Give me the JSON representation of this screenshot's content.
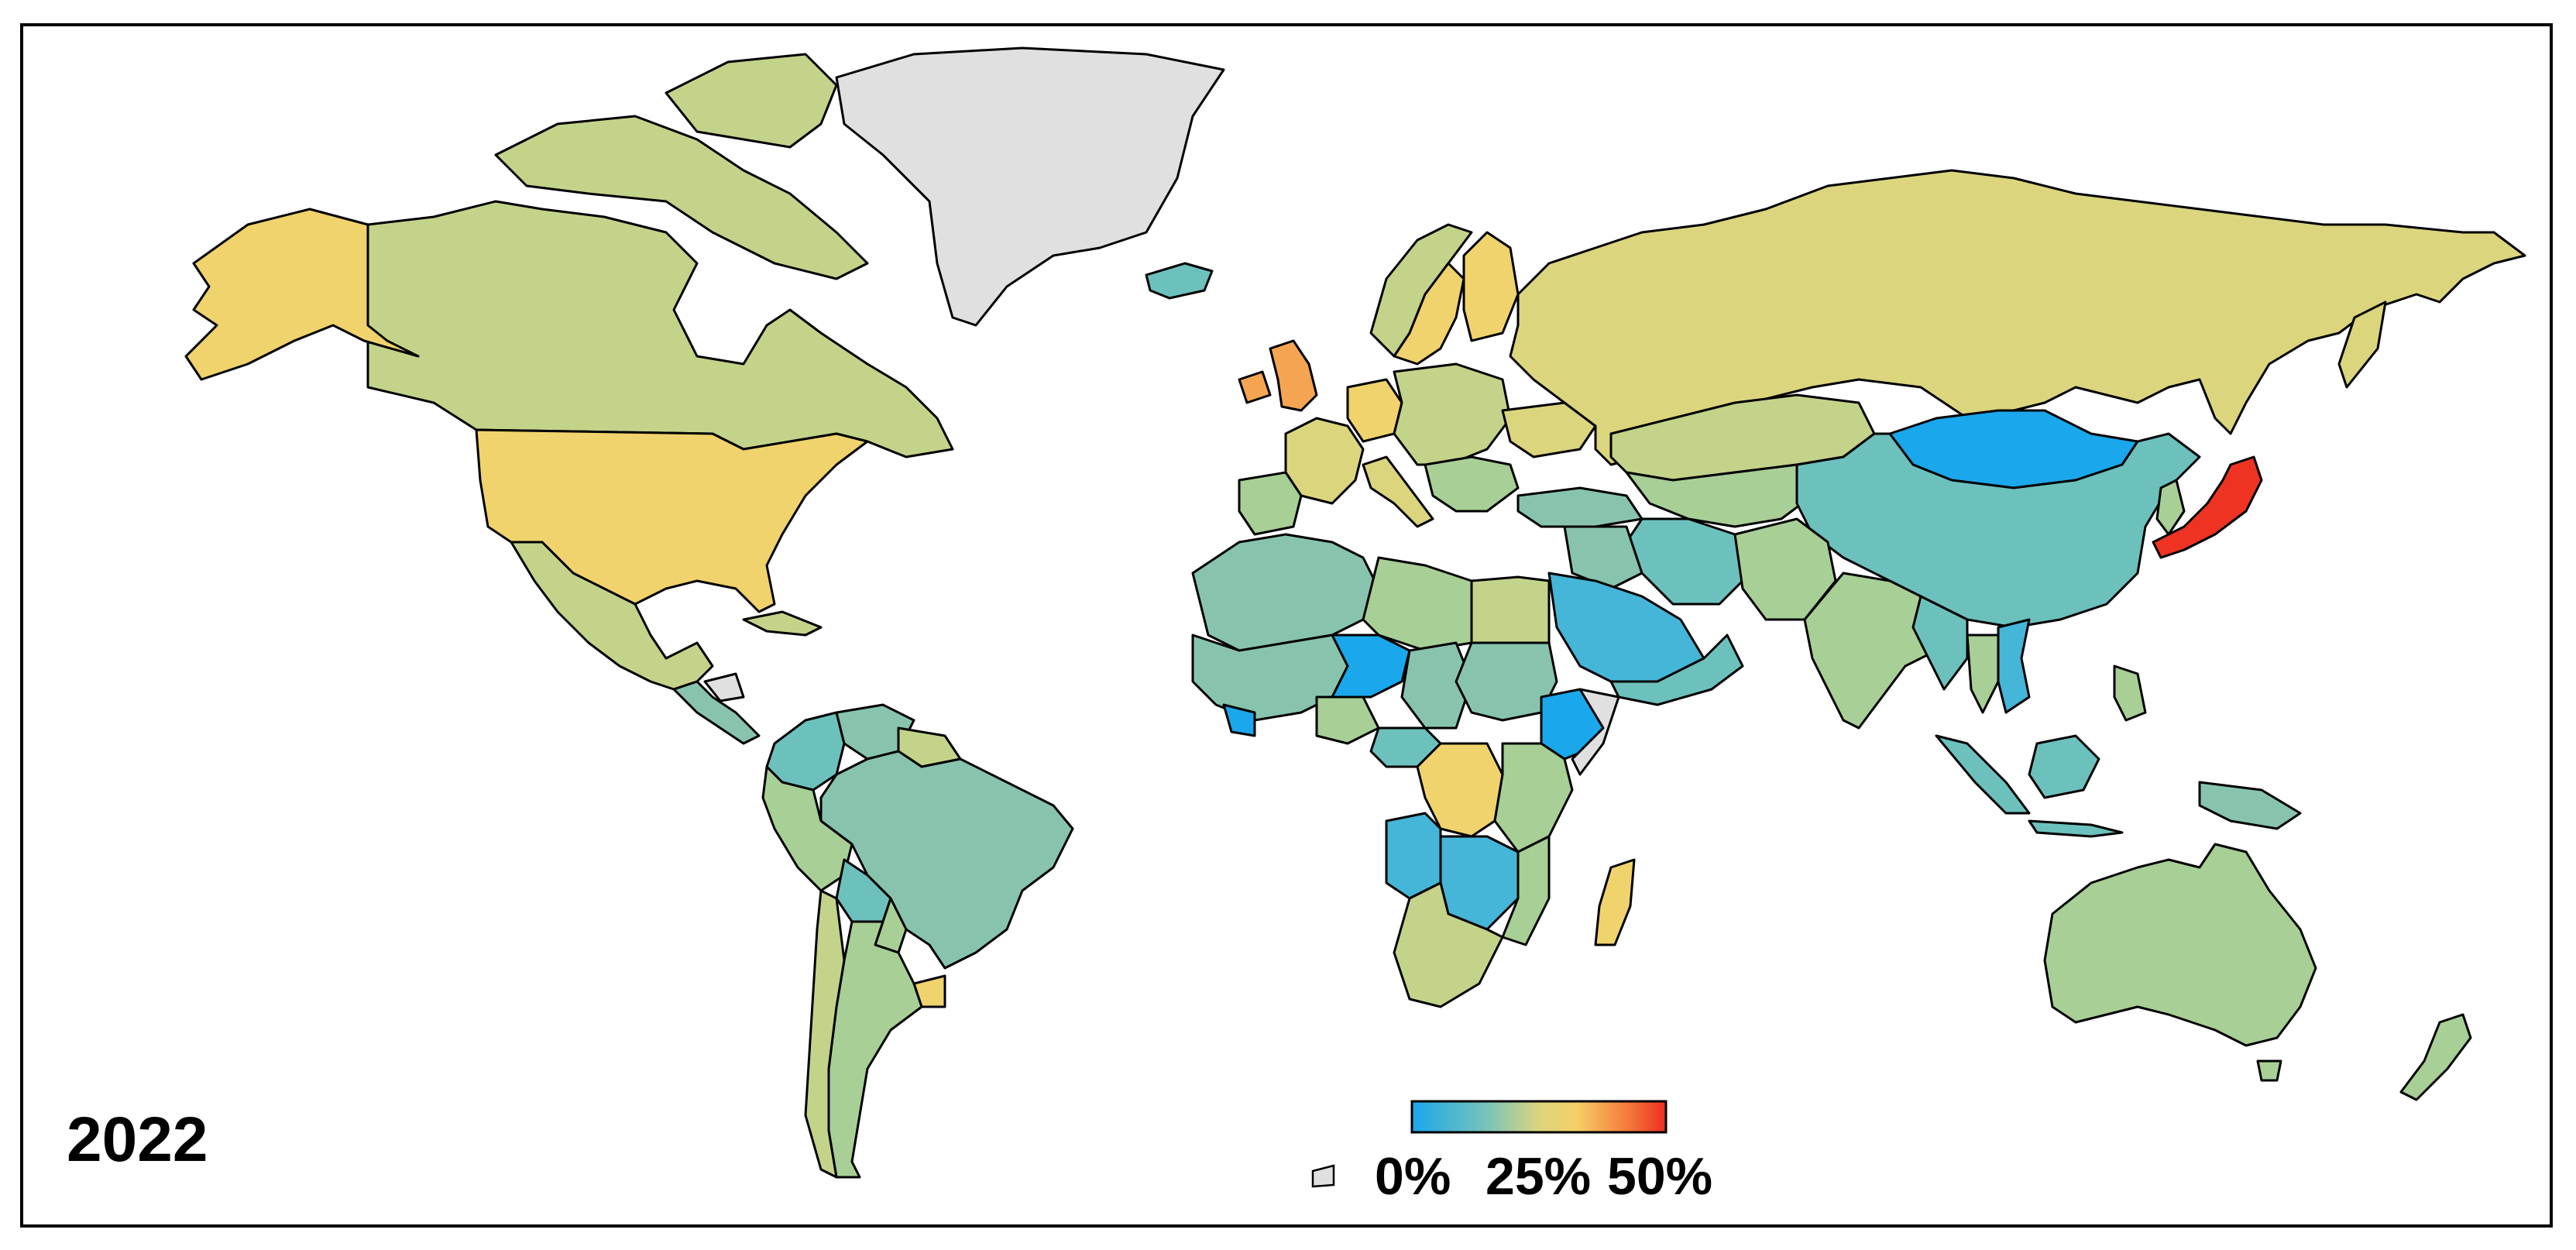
{
  "map": {
    "year": "2022",
    "legend": {
      "ticks": [
        "0%",
        "25%",
        "50%"
      ],
      "scale_min": 0,
      "scale_max": 50,
      "colors": [
        "#1aa7ec",
        "#79c4b8",
        "#b8cf8c",
        "#f0d06c",
        "#f6a04e",
        "#ee2e1e"
      ],
      "no_data_color": "#e0e0e0"
    },
    "colors": {
      "ocean": "#ffffff",
      "border": "#000000",
      "no_data": "#e0e0e0",
      "blue": "#1aa7ec",
      "teal": "#6cc1bd",
      "teal_green": "#88c4ad",
      "green": "#a8cf96",
      "yellow_green": "#c4d38a",
      "khaki": "#dbd57e",
      "yellow": "#f0d36c",
      "orange": "#f5a552",
      "red": "#ee3322"
    }
  }
}
